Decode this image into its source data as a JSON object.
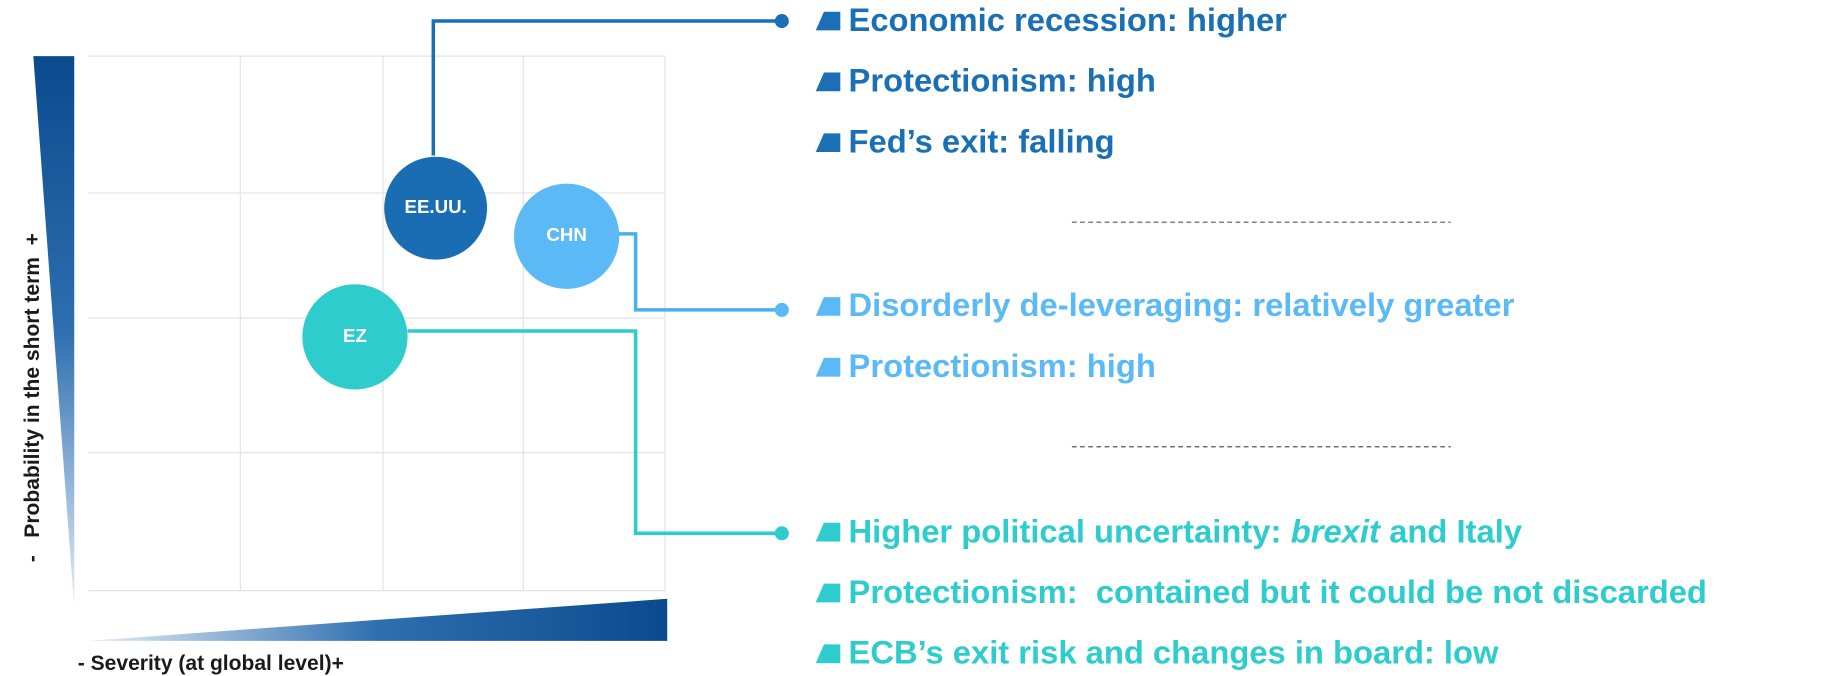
{
  "axes": {
    "y_label": "-   Probability in the short term  +",
    "x_label": "- Severity (at global level)+"
  },
  "nodes": [
    {
      "label": "EE.UU."
    },
    {
      "label": "CHN"
    },
    {
      "label": "EZ"
    }
  ],
  "groups": [
    {
      "items": [
        "Economic recession: higher",
        "Protectionism: high",
        "Fed’s exit: falling"
      ]
    },
    {
      "items": [
        "Disorderly de-leveraging: relatively greater",
        "Protectionism: high"
      ]
    },
    {
      "items": [
        {
          "text_before": "Higher political uncertainty:",
          "emphasis": "brexit",
          "text_after": "and Italy"
        },
        "Protectionism:  contained but it could be not discarded",
        "ECB’s exit risk and changes in board: low"
      ]
    }
  ]
}
